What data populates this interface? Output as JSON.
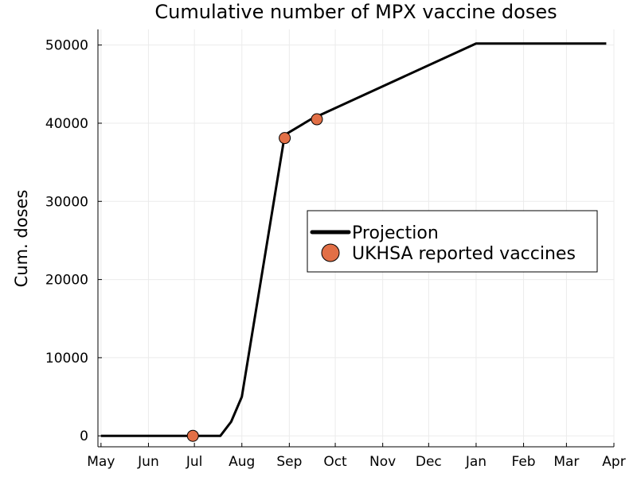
{
  "chart_data": {
    "type": "line",
    "title": "Cumulative number of MPX vaccine doses",
    "xlabel": "",
    "ylabel": "Cum. doses",
    "xlim": [
      "2022-04-29",
      "2023-04-01"
    ],
    "ylim": [
      -1400,
      52000
    ],
    "x_ticks": [
      {
        "label": "May",
        "date": "2022-05-01"
      },
      {
        "label": "Jun",
        "date": "2022-06-01"
      },
      {
        "label": "Jul",
        "date": "2022-07-01"
      },
      {
        "label": "Aug",
        "date": "2022-08-01"
      },
      {
        "label": "Sep",
        "date": "2022-09-01"
      },
      {
        "label": "Oct",
        "date": "2022-10-01"
      },
      {
        "label": "Nov",
        "date": "2022-11-01"
      },
      {
        "label": "Dec",
        "date": "2022-12-01"
      },
      {
        "label": "Jan",
        "date": "2023-01-01"
      },
      {
        "label": "Feb",
        "date": "2023-02-01"
      },
      {
        "label": "Mar",
        "date": "2023-03-01"
      },
      {
        "label": "Apr",
        "date": "2023-04-01"
      }
    ],
    "y_ticks": [
      0,
      10000,
      20000,
      30000,
      40000,
      50000
    ],
    "grid": true,
    "legend": "right",
    "series": [
      {
        "name": "Projection",
        "kind": "line",
        "color": "#000000",
        "points": [
          [
            "2022-05-01",
            0
          ],
          [
            "2022-07-18",
            0
          ],
          [
            "2022-07-25",
            1800
          ],
          [
            "2022-08-01",
            5000
          ],
          [
            "2022-08-29",
            38500
          ],
          [
            "2022-09-15",
            40500
          ],
          [
            "2023-01-01",
            50200
          ],
          [
            "2023-03-27",
            50200
          ]
        ]
      },
      {
        "name": "UKHSA reported vaccines",
        "kind": "scatter",
        "color": "#e26f46",
        "points": [
          [
            "2022-06-30",
            0
          ],
          [
            "2022-08-29",
            38100
          ],
          [
            "2022-09-19",
            40500
          ]
        ]
      }
    ]
  }
}
